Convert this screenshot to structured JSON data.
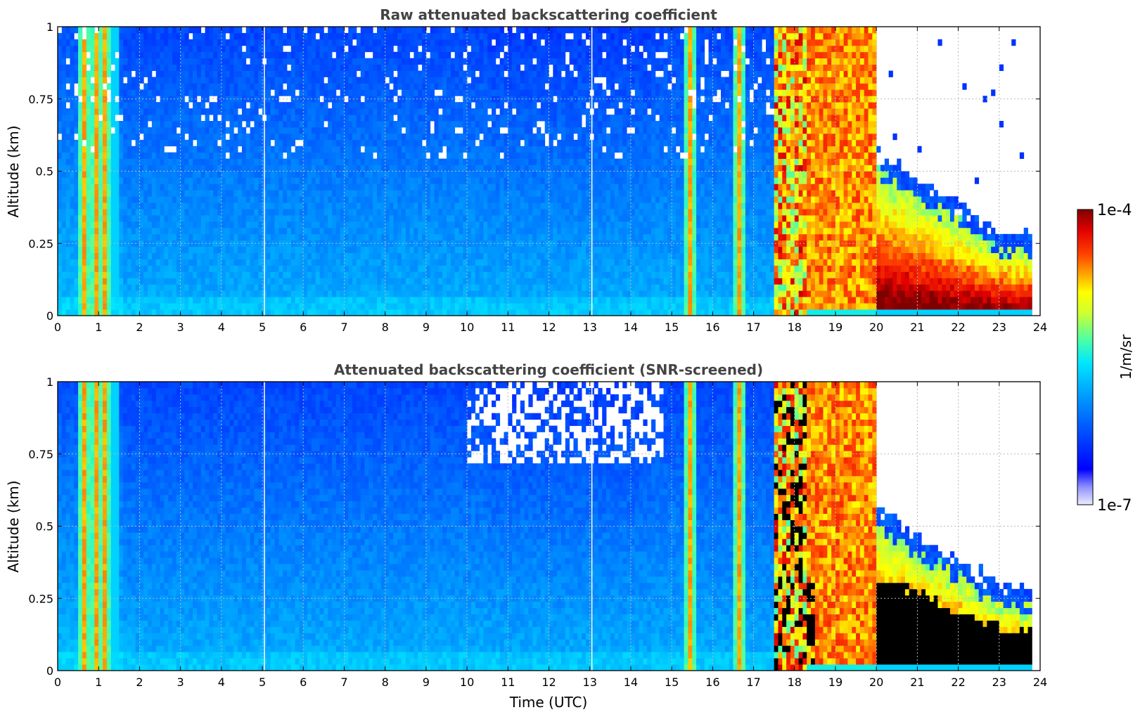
{
  "chart_data": [
    {
      "type": "heatmap",
      "title": "Raw attenuated backscattering coefficient",
      "xlabel": "",
      "ylabel": "Altitude (km)",
      "xlim": [
        0,
        24
      ],
      "ylim": [
        0,
        1
      ],
      "xticks": [
        "0",
        "1",
        "2",
        "3",
        "4",
        "5",
        "6",
        "7",
        "8",
        "9",
        "10",
        "11",
        "12",
        "13",
        "14",
        "15",
        "16",
        "17",
        "18",
        "19",
        "20",
        "21",
        "22",
        "23",
        "24"
      ],
      "yticks": [
        "0",
        "0.25",
        "0.5",
        "0.75",
        "1"
      ],
      "grid": true,
      "screened": false
    },
    {
      "type": "heatmap",
      "title": "Attenuated backscattering coefficient (SNR-screened)",
      "xlabel": "Time (UTC)",
      "ylabel": "Altitude (km)",
      "xlim": [
        0,
        24
      ],
      "ylim": [
        0,
        1
      ],
      "xticks": [
        "0",
        "1",
        "2",
        "3",
        "4",
        "5",
        "6",
        "7",
        "8",
        "9",
        "10",
        "11",
        "12",
        "13",
        "14",
        "15",
        "16",
        "17",
        "18",
        "19",
        "20",
        "21",
        "22",
        "23",
        "24"
      ],
      "yticks": [
        "0",
        "0.25",
        "0.5",
        "0.75",
        "1"
      ],
      "grid": true,
      "screened": true
    }
  ],
  "colorbar": {
    "label": "1/m/sr",
    "max_label": "1e-4",
    "min_label": "1e-7",
    "scale": "log",
    "colormap": "jet"
  },
  "events": {
    "low_cloud_bands_utc": [
      0.65,
      0.95,
      1.15,
      15.45,
      16.65
    ],
    "dense_cloud_start_utc": 17.5,
    "opaque_cloud_span_utc": [
      18.3,
      20.0
    ],
    "fog_layer_span_utc": [
      20.0,
      23.8
    ],
    "data_end_utc": 23.8
  }
}
